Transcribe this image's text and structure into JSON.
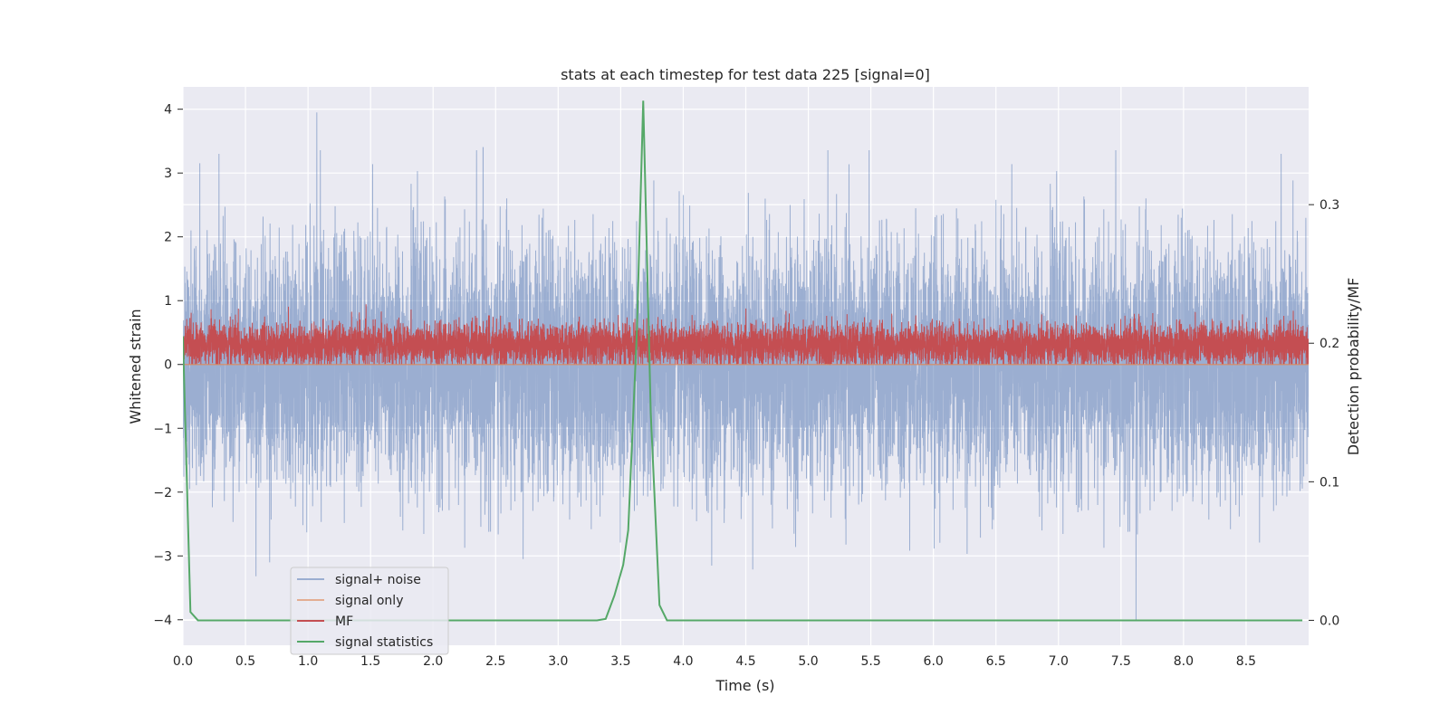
{
  "chart_data": {
    "type": "line",
    "title": "stats at each timestep for test data 225 [signal=0]",
    "xlabel": "Time (s)",
    "ylabel": "Whitened strain",
    "y2label": "Detection probability/MF",
    "xlim": [
      0,
      9
    ],
    "ylim": [
      -4.4,
      4.35
    ],
    "y2lim": [
      -0.018,
      0.385
    ],
    "xticks": [
      "0.0",
      "0.5",
      "1.0",
      "1.5",
      "2.0",
      "2.5",
      "3.0",
      "3.5",
      "4.0",
      "4.5",
      "5.0",
      "5.5",
      "6.0",
      "6.5",
      "7.0",
      "7.5",
      "8.0",
      "8.5"
    ],
    "yticks": [
      "−4",
      "−3",
      "−2",
      "−1",
      "0",
      "1",
      "2",
      "3",
      "4"
    ],
    "y2ticks": [
      "0.0",
      "0.1",
      "0.2",
      "0.3"
    ],
    "grid": true,
    "legend_position": "lower-left",
    "series": [
      {
        "name": "signal+ noise",
        "color": "#4c72b0",
        "axis": "left",
        "kind": "noise",
        "sample_rate_hz": 2048,
        "std": 0.95,
        "range": [
          -4.0,
          3.95
        ],
        "spikes": [
          [
            1.07,
            3.95
          ],
          [
            7.62,
            -4.0
          ],
          [
            2.4,
            3.4
          ],
          [
            8.78,
            3.3
          ],
          [
            2.72,
            -3.05
          ]
        ]
      },
      {
        "name": "signal only",
        "color": "#dd8452",
        "axis": "left",
        "x": [
          0,
          9
        ],
        "y": [
          0,
          0
        ]
      },
      {
        "name": "MF",
        "color": "#c44e52",
        "axis": "left",
        "kind": "noise",
        "sample_rate_hz": 2048,
        "baseline": 0.3,
        "range": [
          0.0,
          1.0
        ]
      },
      {
        "name": "signal statistics",
        "color": "#55a868",
        "axis": "right",
        "x": [
          0.0,
          0.06,
          0.12,
          0.5,
          1.0,
          2.0,
          3.0,
          3.31,
          3.38,
          3.45,
          3.52,
          3.56,
          3.63,
          3.68,
          3.74,
          3.81,
          3.87,
          4.2,
          5.0,
          6.0,
          7.0,
          8.0,
          8.95
        ],
        "y": [
          0.205,
          0.006,
          0.0,
          0.0,
          0.0,
          0.0,
          0.0,
          0.0,
          0.001,
          0.018,
          0.04,
          0.065,
          0.21,
          0.375,
          0.15,
          0.011,
          0.0,
          0.0,
          0.0,
          0.0,
          0.0,
          0.0,
          0.0
        ]
      }
    ]
  }
}
